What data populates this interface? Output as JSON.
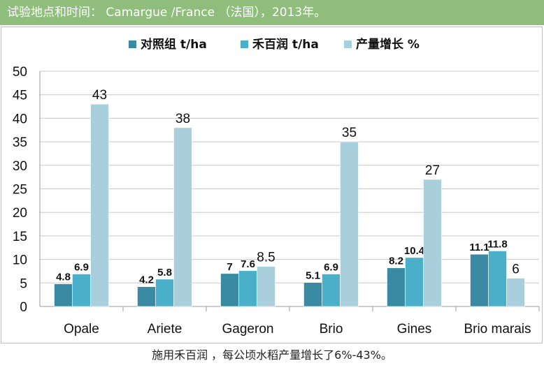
{
  "header": {
    "text": "试验地点和时间： Camargue /France （法国），2013年。"
  },
  "footer": {
    "text": "施用禾百润 ，每公顷水稻产量增长了6%-43%。"
  },
  "colors": {
    "header_bg": "#8fbd7b"
  },
  "chart_data": {
    "type": "bar",
    "title": "",
    "xlabel": "",
    "ylabel": "",
    "categories": [
      "Opale",
      "Ariete",
      "Gageron",
      "Brio",
      "Gines",
      "Brio marais"
    ],
    "series": [
      {
        "name": "对照组 t/ha",
        "color": "#3b8aa3",
        "values": [
          4.8,
          4.2,
          7,
          5.1,
          8.2,
          11.1
        ],
        "labels": [
          "4.8",
          "4.2",
          "7",
          "5.1",
          "8.2",
          "11.1"
        ]
      },
      {
        "name": "禾百润 t/ha",
        "color": "#4aafc8",
        "values": [
          6.9,
          5.8,
          7.6,
          6.9,
          10.4,
          11.8
        ],
        "labels": [
          "6.9",
          "5.8",
          "7.6",
          "6.9",
          "10.4",
          "11.8"
        ]
      },
      {
        "name": "产量增长 %",
        "color": "#a9cfdd",
        "values": [
          43,
          38,
          8.5,
          35,
          27,
          6
        ],
        "labels": [
          "43",
          "38",
          "8.5",
          "35",
          "27",
          "6"
        ]
      }
    ],
    "ylim": [
      0,
      50
    ],
    "yticks": [
      "0",
      "5",
      "10",
      "15",
      "20",
      "25",
      "30",
      "35",
      "40",
      "45",
      "50"
    ],
    "grid": true,
    "legend": "top"
  }
}
